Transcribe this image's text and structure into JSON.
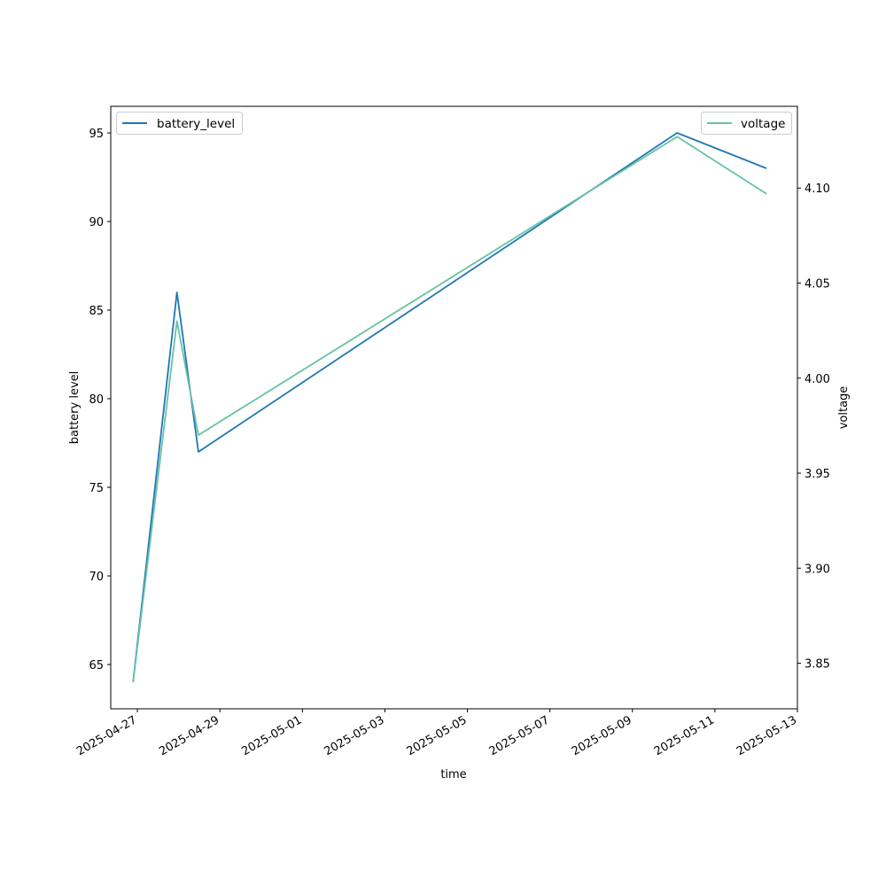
{
  "chart_data": {
    "type": "line",
    "xlabel": "time",
    "ylabel": "battery level",
    "y2label": "voltage",
    "xlim": [
      "2025-04-26T08:30",
      "2025-05-13T00:00"
    ],
    "ylim": [
      62.5,
      96.5
    ],
    "y2lim": [
      3.826,
      4.143
    ],
    "xticks": [
      "2025-04-27",
      "2025-04-29",
      "2025-05-01",
      "2025-05-03",
      "2025-05-05",
      "2025-05-07",
      "2025-05-09",
      "2025-05-11",
      "2025-05-13"
    ],
    "yticks": [
      65,
      70,
      75,
      80,
      85,
      90,
      95
    ],
    "y2ticks": [
      3.85,
      3.9,
      3.95,
      4.0,
      4.05,
      4.1
    ],
    "y2tick_labels": [
      "3.85",
      "3.90",
      "3.95",
      "4.00",
      "4.05",
      "4.10"
    ],
    "series": [
      {
        "name": "battery_level",
        "axis": "left",
        "color": "#1f77b4",
        "legend": "top-left",
        "x": [
          "2025-04-26T21:30",
          "2025-04-27T23:00",
          "2025-04-28T11:30",
          "2025-05-10T02:00",
          "2025-05-12T06:00"
        ],
        "y": [
          64,
          86,
          77,
          95,
          93
        ]
      },
      {
        "name": "voltage",
        "axis": "right",
        "color": "#66c2a5",
        "legend": "top-right",
        "x": [
          "2025-04-26T21:30",
          "2025-04-27T23:00",
          "2025-04-28T11:30",
          "2025-05-10T02:00",
          "2025-05-12T06:00"
        ],
        "y": [
          3.84,
          4.03,
          3.97,
          4.127,
          4.097
        ]
      }
    ],
    "grid": false
  }
}
